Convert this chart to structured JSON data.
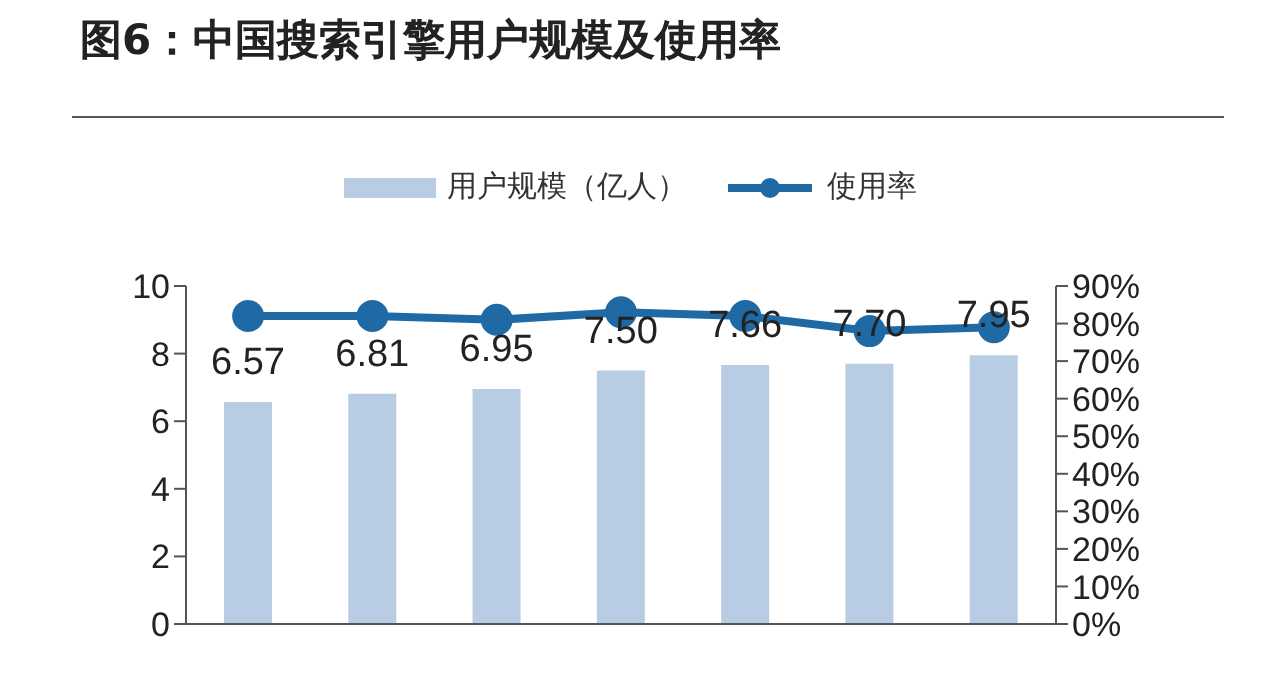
{
  "chart_data": {
    "type": "bar",
    "title": "图6：中国搜索引擎用户规模及使用率",
    "categories": [
      null,
      null,
      null,
      null,
      null,
      null,
      null
    ],
    "series": [
      {
        "name": "用户规模（亿人）",
        "color": "#b8cce4",
        "values": [
          6.57,
          6.81,
          6.95,
          7.5,
          7.66,
          7.7,
          7.95
        ],
        "value_labels": [
          "6.57",
          "6.81",
          "6.95",
          "7.50",
          "7.66",
          "7.70",
          "7.95"
        ]
      },
      {
        "type": "line",
        "name": "使用率",
        "color": "#1f6aa5",
        "values": [
          82,
          82,
          81,
          83,
          82,
          78,
          79
        ],
        "axis": "y2",
        "marker": "circle"
      }
    ],
    "ylim": [
      0,
      10
    ],
    "yticks": [
      0,
      2,
      4,
      6,
      8,
      10
    ],
    "y2lim": [
      0,
      90
    ],
    "y2ticks": [
      {
        "value": 0,
        "label": "0%"
      },
      {
        "value": 10,
        "label": "10%"
      },
      {
        "value": 20,
        "label": "20%"
      },
      {
        "value": 30,
        "label": "30%"
      },
      {
        "value": 40,
        "label": "40%"
      },
      {
        "value": 50,
        "label": "50%"
      },
      {
        "value": 60,
        "label": "60%"
      },
      {
        "value": 70,
        "label": "70%"
      },
      {
        "value": 80,
        "label": "80%"
      },
      {
        "value": 90,
        "label": "90%"
      }
    ],
    "legend": "top",
    "tick_labels": "y"
  }
}
